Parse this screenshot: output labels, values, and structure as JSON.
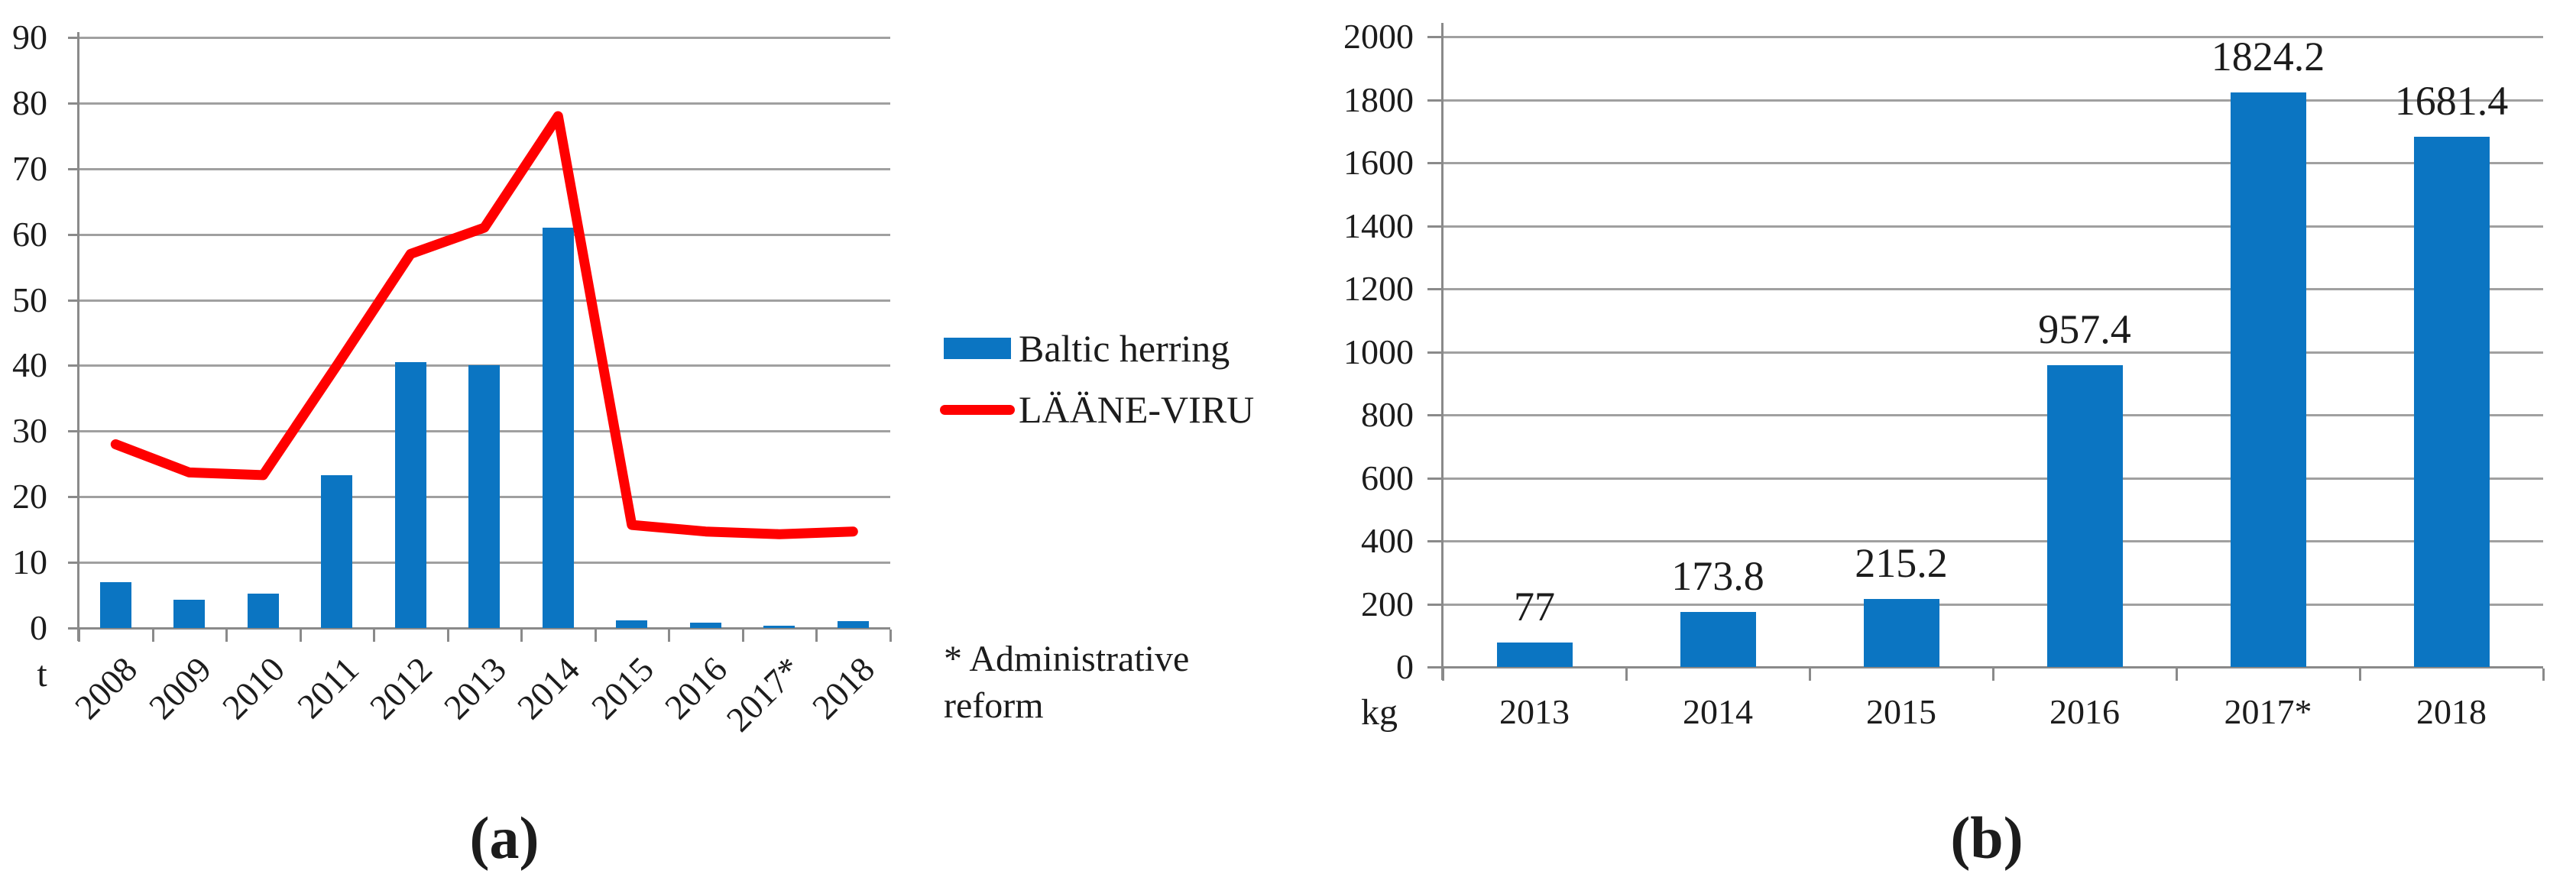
{
  "figure": {
    "background": "#ffffff"
  },
  "colors": {
    "bar_blue": "#0b75c2",
    "line_red": "#ff0000",
    "gridline_gray": "#a0a0a0",
    "axis_gray": "#8a8a8a",
    "text_black": "#1c1c1c"
  },
  "chart_data": [
    {
      "id": "a",
      "type": "bar",
      "subtype": "bar+line combo",
      "unit_label": "t",
      "categories": [
        "2008",
        "2009",
        "2010",
        "2011",
        "2012",
        "2013",
        "2014",
        "2015",
        "2016",
        "2017*",
        "2018"
      ],
      "series": [
        {
          "name": "Baltic herring",
          "type": "bar",
          "color": "#0b75c2",
          "values": [
            7,
            4.3,
            5.2,
            23.3,
            40.5,
            40,
            61,
            1.2,
            0.8,
            0.4,
            1
          ]
        },
        {
          "name": "LÄÄNE-VIRU",
          "type": "line",
          "color": "#ff0000",
          "values": [
            28,
            23.7,
            23.3,
            40,
            57,
            61,
            78,
            15.7,
            14.7,
            14.3,
            14.7
          ]
        }
      ],
      "ylim": [
        0,
        90
      ],
      "ytick_step": 10,
      "ytick_labels": [
        "0",
        "10",
        "20",
        "30",
        "40",
        "50",
        "60",
        "70",
        "80",
        "90"
      ],
      "grid": "horizontal",
      "legend_position": "right",
      "legend": [
        "Baltic herring",
        "LÄÄNE-VIRU"
      ],
      "note": "* Administrative reform",
      "caption": "(a)",
      "x_labels_rotated_degrees": 45
    },
    {
      "id": "b",
      "type": "bar",
      "unit_label": "kg",
      "categories": [
        "2013",
        "2014",
        "2015",
        "2016",
        "2017*",
        "2018"
      ],
      "values": [
        77,
        173.8,
        215.2,
        957.4,
        1824.2,
        1681.4
      ],
      "data_labels": [
        "77",
        "173.8",
        "215.2",
        "957.4",
        "1824.2",
        "1681.4"
      ],
      "ylim": [
        0,
        2000
      ],
      "ytick_step": 200,
      "ytick_labels": [
        "0",
        "200",
        "400",
        "600",
        "800",
        "1000",
        "1200",
        "1400",
        "1600",
        "1800",
        "2000"
      ],
      "grid": "horizontal",
      "legend_position": "none",
      "caption": "(b)"
    }
  ]
}
